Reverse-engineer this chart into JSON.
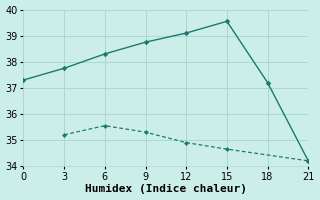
{
  "line1_x": [
    0,
    3,
    6,
    9,
    12,
    15,
    18,
    21
  ],
  "line1_y": [
    37.3,
    37.75,
    38.3,
    38.75,
    39.1,
    39.55,
    37.2,
    34.2
  ],
  "line2_x": [
    3,
    6,
    9,
    12,
    15,
    21
  ],
  "line2_y": [
    35.2,
    35.55,
    35.3,
    34.9,
    34.65,
    34.2
  ],
  "line_color": "#1a7a6e",
  "bg_color": "#cceee8",
  "grid_color": "#aad8d0",
  "xlabel": "Humidex (Indice chaleur)",
  "xlim": [
    0,
    21
  ],
  "ylim": [
    34,
    40
  ],
  "xticks": [
    0,
    3,
    6,
    9,
    12,
    15,
    18,
    21
  ],
  "yticks": [
    34,
    35,
    36,
    37,
    38,
    39,
    40
  ],
  "tick_fontsize": 7,
  "xlabel_fontsize": 8
}
